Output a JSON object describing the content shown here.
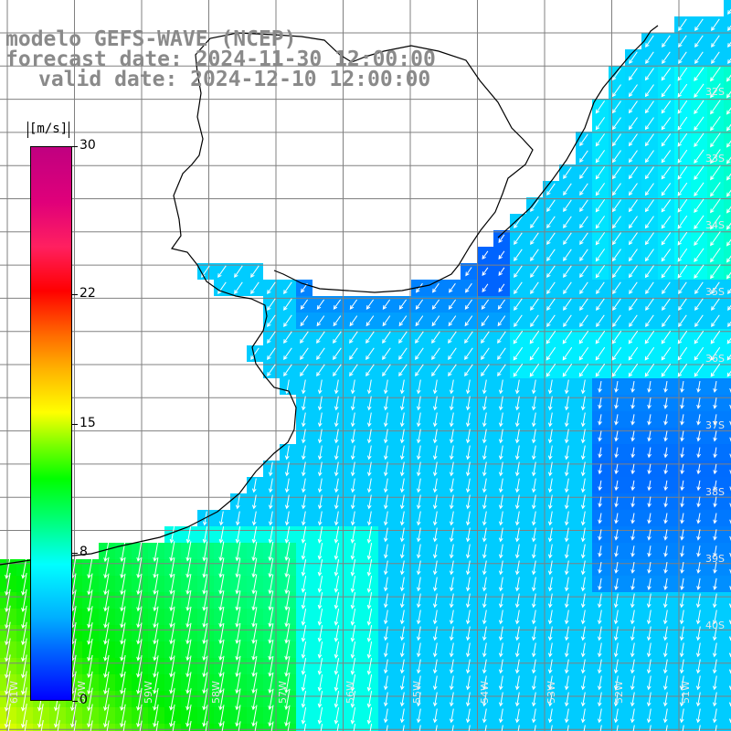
{
  "title": {
    "model": "modelo GEFS-WAVE (NCEP)",
    "forecast": "forecast date: 2024-11-30 12:00:00",
    "valid": "valid date: 2024-12-10 12:00:00"
  },
  "colorbar": {
    "units": "[m/s]",
    "ticks": [
      {
        "label": "30",
        "value": 30
      },
      {
        "label": "22",
        "value": 22
      },
      {
        "label": "15",
        "value": 15
      },
      {
        "label": "8",
        "value": 8
      },
      {
        "label": "0",
        "value": 0
      }
    ]
  },
  "latitude_labels": [
    "32S",
    "33S",
    "34S",
    "35S",
    "36S",
    "37S",
    "38S",
    "39S",
    "40S"
  ],
  "longitude_labels": [
    "61W",
    "60W",
    "59W",
    "58W",
    "57W",
    "56W",
    "55W",
    "54W",
    "53W",
    "52W",
    "51W"
  ],
  "colors": {
    "land": "#ffffff",
    "coast": "#000000",
    "grid": "#808080",
    "arrows": "#ffffff",
    "title": "#8a8a8a"
  }
}
